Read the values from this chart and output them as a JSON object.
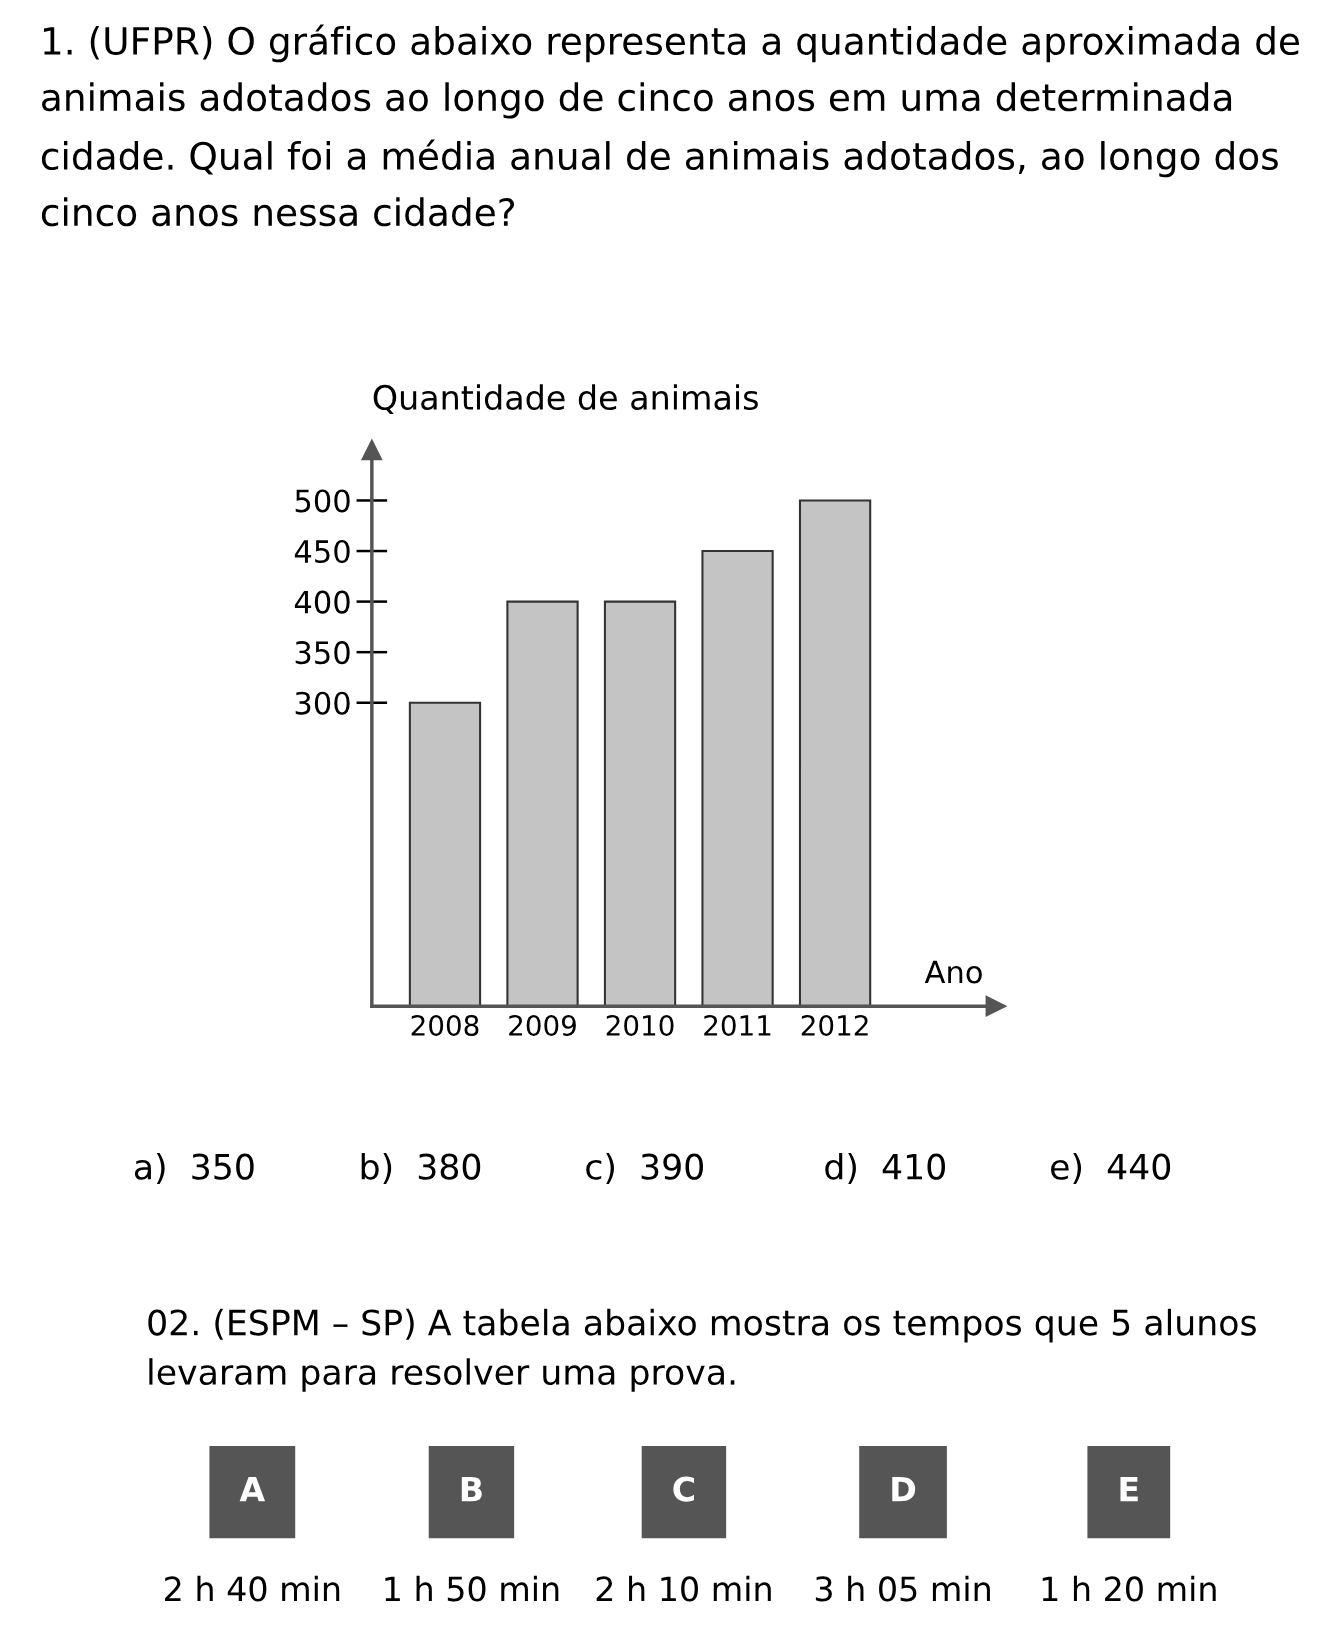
{
  "chart_data": {
    "type": "bar",
    "title": "1. (UFPR) O gráfico abaixo representa a quantidade aproximada de animais adotados ao longo de cinco anos em uma determinada cidade. Qual foi a média anual de animais adotados, ao longo dos cinco anos nessa cidade?",
    "ylabel": "Quantidade de animais",
    "xlabel": "Ano",
    "categories": [
      "2008",
      "2009",
      "2010",
      "2011",
      "2012"
    ],
    "values": [
      300,
      400,
      400,
      450,
      500
    ],
    "color": "#c4c4c4",
    "ylim": [
      0,
      550
    ],
    "yticks": [
      300,
      350,
      400,
      450,
      500
    ],
    "grid": false,
    "annotations": [
      "a)  350",
      "b)  380",
      "c)  390",
      "d)  410",
      "e)  440",
      "02. (ESPM – SP) A tabela abaixo mostra os tempos que 5 alunos levaram para resolver uma prova.",
      "A",
      "B",
      "C",
      "D",
      "E",
      "2 h 40 min",
      "1 h 50 min",
      "2 h 10 min",
      "3 h 05 min",
      "1 h 20 min"
    ]
  }
}
